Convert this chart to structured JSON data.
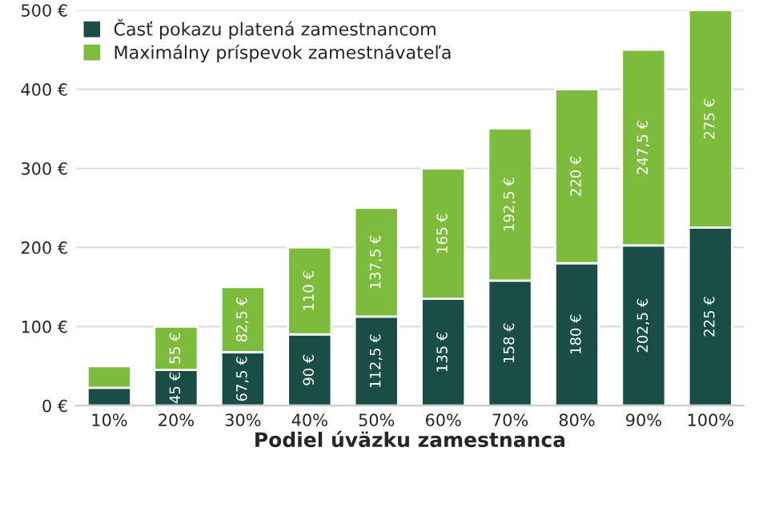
{
  "chart_data": {
    "type": "bar",
    "stacked": true,
    "xlabel": "Podiel úväzku zamestnanca",
    "categories": [
      "10%",
      "20%",
      "30%",
      "40%",
      "50%",
      "60%",
      "70%",
      "80%",
      "90%",
      "100%"
    ],
    "series": [
      {
        "name": "Časť pokazu platená zamestnancom",
        "color": "#1a4d46",
        "values": [
          22.5,
          45,
          67.5,
          90,
          112.5,
          135,
          158,
          180,
          202.5,
          225
        ],
        "value_labels": [
          null,
          "45 €",
          "67,5 €",
          "90 €",
          "112,5 €",
          "135 €",
          "158 €",
          "180 €",
          "202,5 €",
          "225 €"
        ]
      },
      {
        "name": "Maximálny príspevok zamestnávateľa",
        "color": "#7dbb3c",
        "values": [
          27.5,
          55,
          82.5,
          110,
          137.5,
          165,
          192.5,
          220,
          247.5,
          275
        ],
        "value_labels": [
          null,
          "55 €",
          "82,5 €",
          "110 €",
          "137,5 €",
          "165 €",
          "192,5 €",
          "220 €",
          "247,5 €",
          "275 €"
        ]
      }
    ],
    "ylim": [
      0,
      500
    ],
    "yticks": [
      {
        "value": 0,
        "label": "0 €"
      },
      {
        "value": 100,
        "label": "100 €"
      },
      {
        "value": 200,
        "label": "200 €"
      },
      {
        "value": 300,
        "label": "300 €"
      },
      {
        "value": 400,
        "label": "400 €"
      },
      {
        "value": 500,
        "label": "500 €"
      }
    ],
    "grid": "y",
    "legend": "top left"
  }
}
